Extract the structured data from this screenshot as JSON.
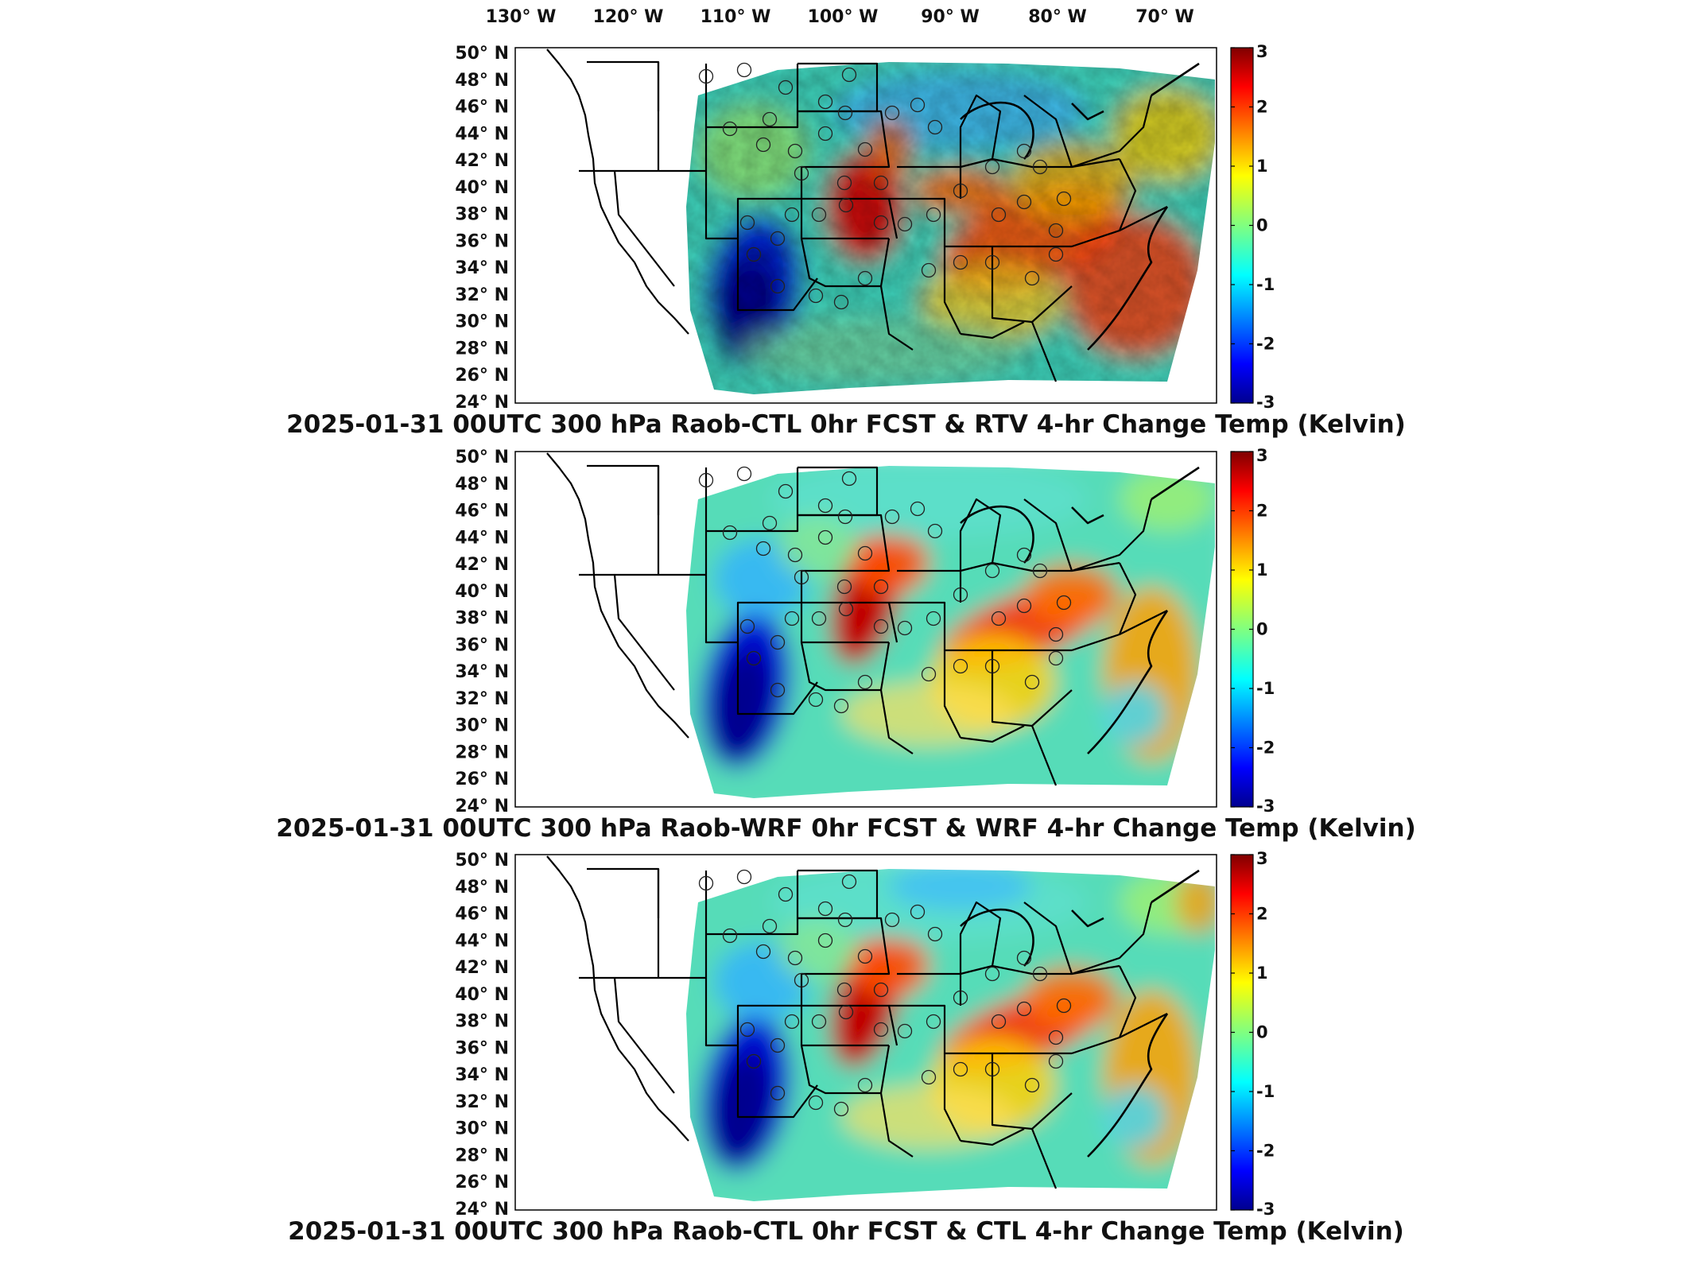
{
  "figure": {
    "longitude_labels": [
      "130° W",
      "120° W",
      "110° W",
      "100° W",
      "90° W",
      "80° W",
      "70° W"
    ],
    "latitude_labels": [
      "50° N",
      "48° N",
      "46° N",
      "44° N",
      "42° N",
      "40° N",
      "38° N",
      "36° N",
      "34° N",
      "32° N",
      "30° N",
      "28° N",
      "26° N",
      "24° N"
    ],
    "colorbar": {
      "tick_labels": [
        "3",
        "2",
        "1",
        "0",
        "-1",
        "-2",
        "-3"
      ],
      "range": [
        -3,
        3
      ],
      "colormap": "jet",
      "colors": [
        "#00008f",
        "#0000ff",
        "#0080ff",
        "#00ffff",
        "#80ff80",
        "#ffff00",
        "#ff8000",
        "#ff0000",
        "#800000"
      ]
    },
    "panels": [
      {
        "title": "2025-01-31 00UTC 300 hPa Raob-CTL 0hr FCST & RTV 4-hr Change Temp (Kelvin)",
        "field_style": "noisy"
      },
      {
        "title": "2025-01-31 00UTC 300 hPa Raob-WRF 0hr FCST & WRF 4-hr Change Temp (Kelvin)",
        "field_style": "smooth"
      },
      {
        "title": "2025-01-31 00UTC 300 hPa Raob-CTL 0hr FCST & CTL 4-hr Change Temp (Kelvin)",
        "field_style": "smooth"
      }
    ]
  }
}
